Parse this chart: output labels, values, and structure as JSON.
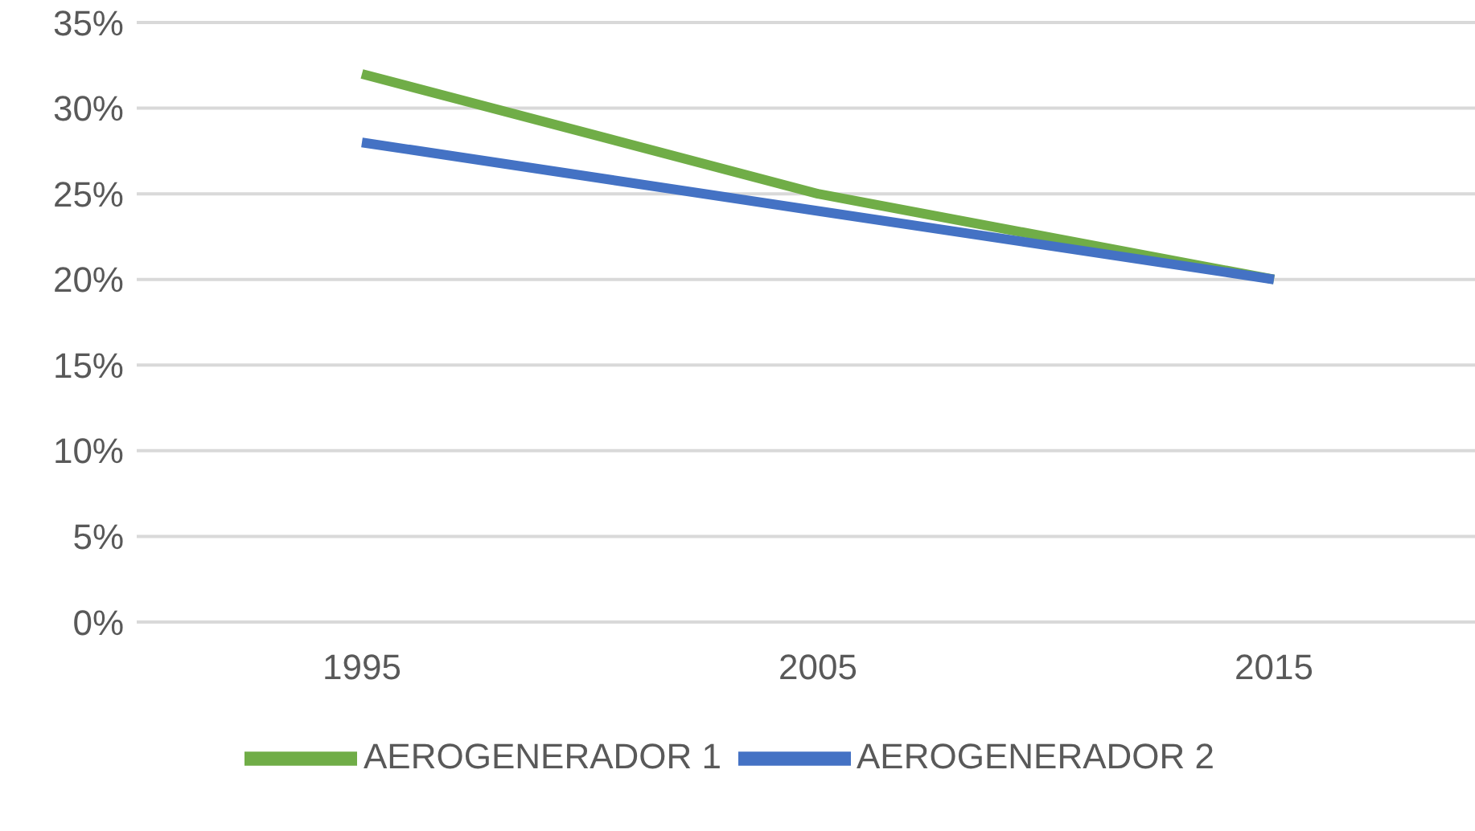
{
  "chart_data": {
    "type": "line",
    "categories": [
      "1995",
      "2005",
      "2015"
    ],
    "series": [
      {
        "name": "AEROGENERADOR 1",
        "color": "#70ad47",
        "values": [
          32,
          25,
          20
        ]
      },
      {
        "name": "AEROGENERADOR 2",
        "color": "#4472c4",
        "values": [
          28,
          24,
          20
        ]
      }
    ],
    "ylim": [
      0,
      35
    ],
    "yticks": [
      {
        "value": 0,
        "label": "0%"
      },
      {
        "value": 5,
        "label": "5%"
      },
      {
        "value": 10,
        "label": "10%"
      },
      {
        "value": 15,
        "label": "15%"
      },
      {
        "value": 20,
        "label": "20%"
      },
      {
        "value": 25,
        "label": "25%"
      },
      {
        "value": 30,
        "label": "30%"
      },
      {
        "value": 35,
        "label": "35%"
      }
    ],
    "grid": "y",
    "legend": "bottom",
    "marker": "none",
    "line_style": "solid"
  }
}
